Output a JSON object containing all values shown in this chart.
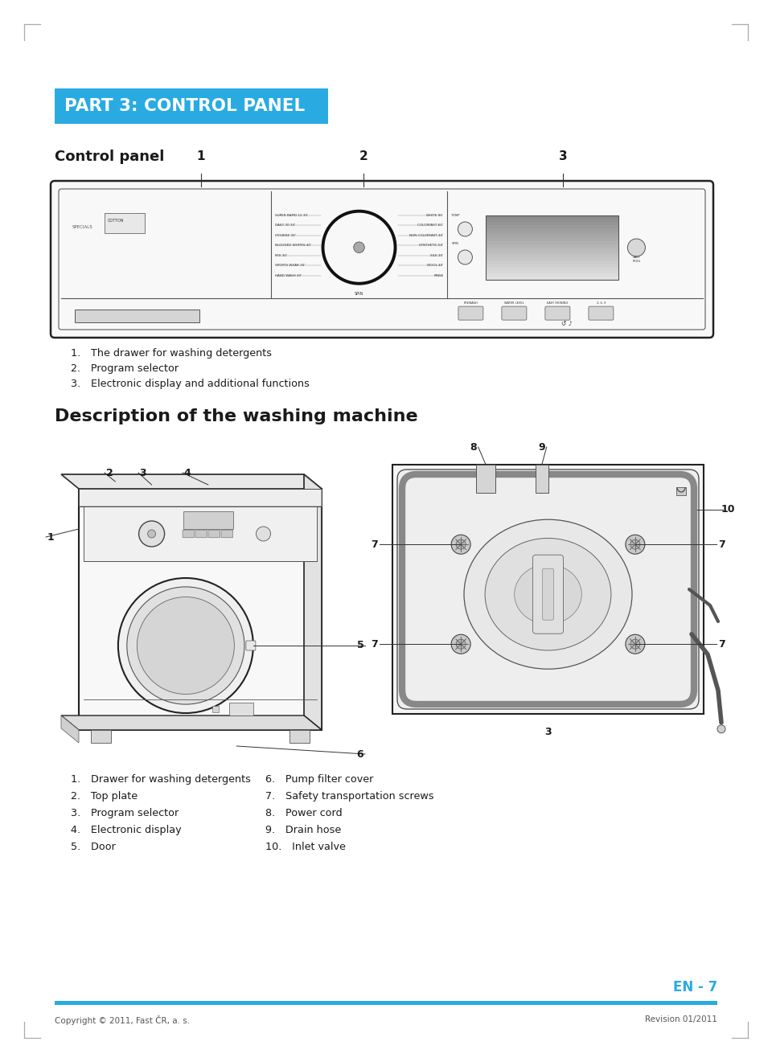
{
  "bg_color": "#ffffff",
  "header_bg_color": "#29abe2",
  "header_text": "PART 3: CONTROL PANEL",
  "header_text_color": "#ffffff",
  "section1_title": "Control panel",
  "section2_title": "Description of the washing machine",
  "cp_items": [
    "The drawer for washing detergents",
    "Program selector",
    "Electronic display and additional functions"
  ],
  "machine_items_left": [
    "Drawer for washing detergents",
    "Top plate",
    "Program selector",
    "Electronic display",
    "Door"
  ],
  "machine_items_right": [
    "Pump filter cover",
    "Safety transportation screws",
    "Power cord",
    "Drain hose",
    "Inlet valve"
  ],
  "footer_left": "Copyright © 2011, Fast ČR, a. s.",
  "footer_right": "Revision 01/2011",
  "page_num": "EN - 7",
  "page_num_color": "#29abe2",
  "accent_color": "#29abe2",
  "tick_color": "#aaaaaa",
  "text_dark": "#1a1a1a",
  "text_gray": "#555555",
  "line_dark": "#222222",
  "line_mid": "#555555",
  "fill_light": "#f5f5f5",
  "fill_mid": "#e0e0e0",
  "fill_dark": "#cccccc"
}
